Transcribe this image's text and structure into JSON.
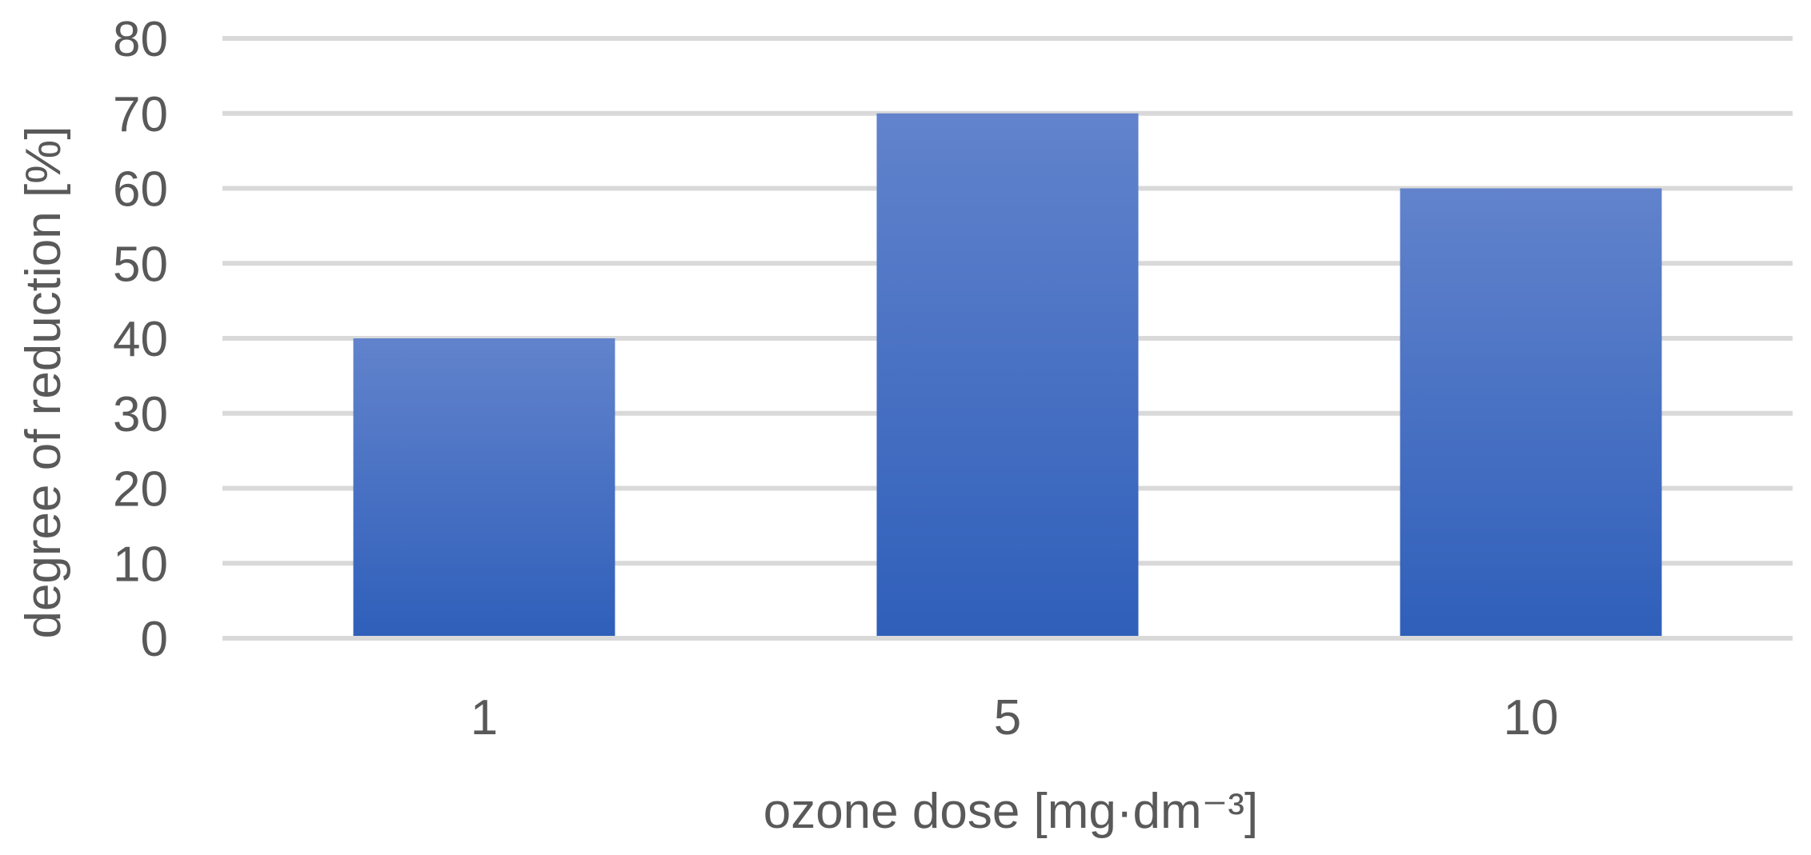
{
  "chart_data": {
    "type": "bar",
    "categories": [
      "1",
      "5",
      "10"
    ],
    "values": [
      40,
      70,
      60
    ],
    "title": "",
    "xlabel": "ozone dose [mg·dm⁻³]",
    "ylabel": "degree of reduction [%]",
    "ylim": [
      0,
      80
    ],
    "yticks": [
      "0",
      "10",
      "20",
      "30",
      "40",
      "50",
      "60",
      "70",
      "80"
    ],
    "grid": true,
    "legend": "none",
    "colors": {
      "bar_top": "#6283cc",
      "bar_bottom": "#2f5fba",
      "grid": "#d9d9d9",
      "text": "#595959"
    }
  }
}
